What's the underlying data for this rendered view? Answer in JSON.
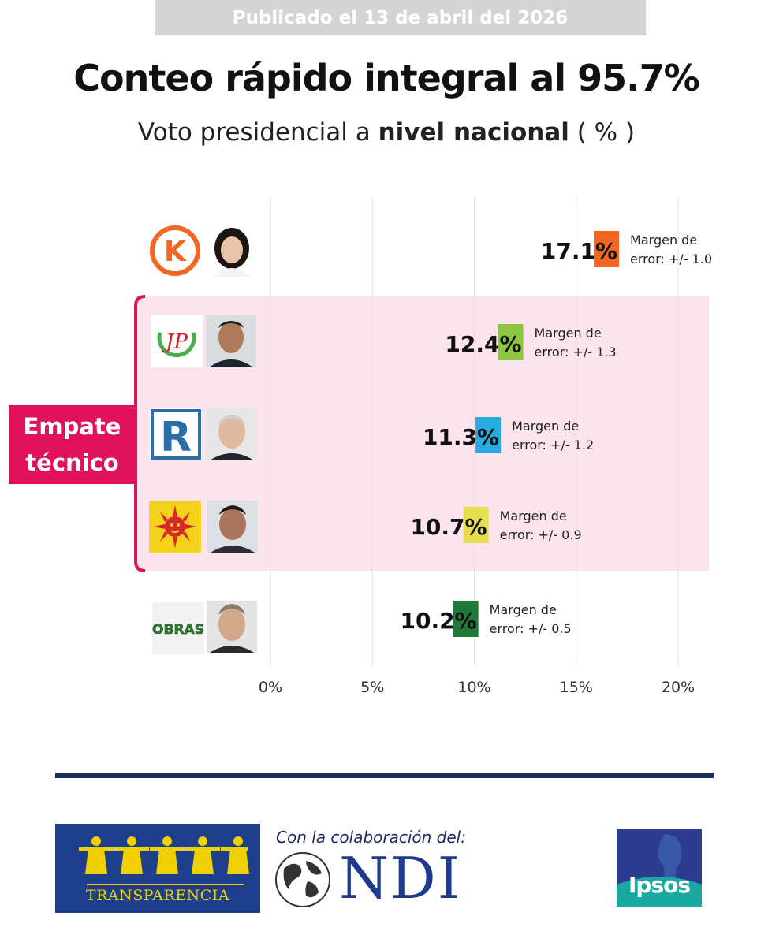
{
  "banner": "Publicado el 13 de abril del 2026",
  "title": "Conteo rápido integral al 95.7%",
  "subtitle": {
    "pre": "Voto presidencial a ",
    "bold": "nivel nacional",
    "post": " ( % )"
  },
  "empate": {
    "line1": "Empate",
    "line2": "técnico"
  },
  "chart_data": {
    "type": "bar",
    "orientation": "horizontal",
    "unit": "%",
    "xlim": [
      0,
      20
    ],
    "ticks": [
      "0%",
      "5%",
      "10%",
      "15%",
      "20%"
    ],
    "tick_values": [
      0,
      5,
      10,
      15,
      20
    ],
    "grid": true,
    "categories": [
      "Fuerza Popular",
      "Juntos por el Perú",
      "Renovación Popular",
      "Partido del Buen Gobierno",
      "Obras"
    ],
    "values": [
      17.1,
      12.4,
      11.3,
      10.7,
      10.2
    ],
    "labels": [
      "17.1%",
      "12.4%",
      "11.3%",
      "10.7%",
      "10.2%"
    ],
    "margin_line1": [
      "Margen de",
      "Margen de",
      "Margen de",
      "Margen de",
      "Margen de"
    ],
    "margin_line2": [
      "error: +/- 1.0",
      "error: +/- 1.3",
      "error: +/- 1.2",
      "error: +/- 0.9",
      "error: +/- 0.5"
    ],
    "colors": [
      "#f26522",
      "#8cc63f",
      "#29abe2",
      "#e6de4f",
      "#1f7a3a"
    ],
    "highlight_group": [
      1,
      2,
      3
    ],
    "highlight_color": "#fbe4ee"
  },
  "logos": {
    "k": "K",
    "jp": "JP",
    "r": "R",
    "obras": "OBRAS"
  },
  "footer": {
    "transparencia": "TRANSPARENCIA",
    "ndi_collab": "Con la colaboración del:",
    "ndi": "NDI",
    "ipsos": "Ipsos"
  },
  "colors": {
    "accent_pink": "#e0125e",
    "navy": "#1d2a5c",
    "banner_gray": "#d4d4d4"
  }
}
